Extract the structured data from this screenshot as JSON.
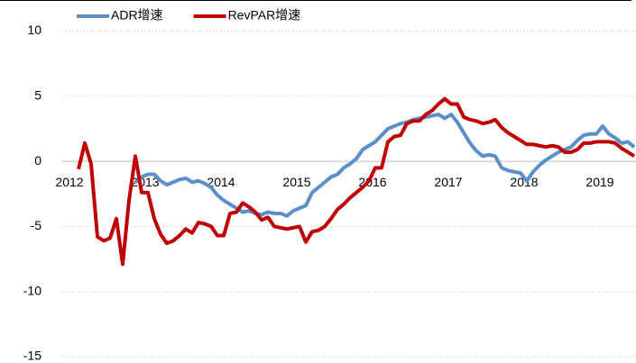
{
  "chart_data": {
    "type": "line",
    "categories": [
      "2012",
      null,
      null,
      null,
      null,
      null,
      null,
      null,
      null,
      null,
      null,
      null,
      "2013",
      null,
      null,
      null,
      null,
      null,
      null,
      null,
      null,
      null,
      null,
      null,
      "2014",
      null,
      null,
      null,
      null,
      null,
      null,
      null,
      null,
      null,
      null,
      null,
      "2015",
      null,
      null,
      null,
      null,
      null,
      null,
      null,
      null,
      null,
      null,
      null,
      "2016",
      null,
      null,
      null,
      null,
      null,
      null,
      null,
      null,
      null,
      null,
      null,
      "2017",
      null,
      null,
      null,
      null,
      null,
      null,
      null,
      null,
      null,
      null,
      null,
      "2018",
      null,
      null,
      null,
      null,
      null,
      null,
      null,
      null,
      null,
      null,
      null,
      "2019",
      null,
      null,
      null,
      null,
      null
    ],
    "series": [
      {
        "name": "ADR增速",
        "color": "#5b8fc7",
        "values": [
          null,
          null,
          null,
          null,
          null,
          null,
          null,
          null,
          null,
          null,
          -1.6,
          -1.2,
          -1.0,
          -1.0,
          -1.5,
          -1.8,
          -1.6,
          -1.4,
          -1.3,
          -1.6,
          -1.5,
          -1.7,
          -2.0,
          -2.6,
          -3.0,
          -3.3,
          -3.6,
          -3.9,
          -3.8,
          -4.0,
          -4.1,
          -3.9,
          -4.0,
          -4.0,
          -4.2,
          -3.8,
          -3.6,
          -3.4,
          -2.4,
          -2.0,
          -1.6,
          -1.2,
          -1.0,
          -0.5,
          -0.2,
          0.2,
          0.9,
          1.2,
          1.5,
          2.0,
          2.5,
          2.7,
          2.9,
          3.0,
          3.2,
          3.3,
          3.4,
          3.5,
          3.6,
          3.3,
          3.6,
          3.0,
          2.2,
          1.4,
          0.8,
          0.4,
          0.5,
          0.4,
          -0.5,
          -0.7,
          -0.8,
          -0.9,
          -1.5,
          -0.8,
          -0.3,
          0.1,
          0.4,
          0.7,
          0.9,
          1.1,
          1.6,
          2.0,
          2.1,
          2.1,
          2.7,
          2.1,
          1.8,
          1.4,
          1.5,
          1.1
        ]
      },
      {
        "name": "RevPAR增速",
        "color": "#c00000",
        "values": [
          null,
          -0.6,
          1.4,
          -0.2,
          -5.8,
          -6.1,
          -5.9,
          -4.4,
          -7.9,
          -3.0,
          0.4,
          -2.4,
          -2.4,
          -4.4,
          -5.6,
          -6.3,
          -6.1,
          -5.7,
          -5.2,
          -5.5,
          -4.7,
          -4.8,
          -5.0,
          -5.7,
          -5.7,
          -4.0,
          -3.9,
          -3.2,
          -3.5,
          -3.9,
          -4.5,
          -4.3,
          -5.0,
          -5.1,
          -5.2,
          -5.1,
          -5.0,
          -6.2,
          -5.4,
          -5.3,
          -5.0,
          -4.4,
          -3.7,
          -3.3,
          -2.8,
          -2.4,
          -2.0,
          -1.5,
          -0.5,
          -0.5,
          1.5,
          1.9,
          2.0,
          2.9,
          3.1,
          3.1,
          3.6,
          3.9,
          4.4,
          4.8,
          4.4,
          4.4,
          3.4,
          3.2,
          3.1,
          2.9,
          3.0,
          3.2,
          2.6,
          2.2,
          1.9,
          1.6,
          1.3,
          1.3,
          1.2,
          1.1,
          1.2,
          1.1,
          0.7,
          0.7,
          0.9,
          1.4,
          1.4,
          1.5,
          1.5,
          1.5,
          1.4,
          1.0,
          0.7,
          0.4
        ]
      }
    ],
    "ylim": [
      -15,
      10
    ],
    "yticks": [
      -15,
      -10,
      -5,
      0,
      5,
      10
    ],
    "grid": true,
    "legend": "top"
  }
}
